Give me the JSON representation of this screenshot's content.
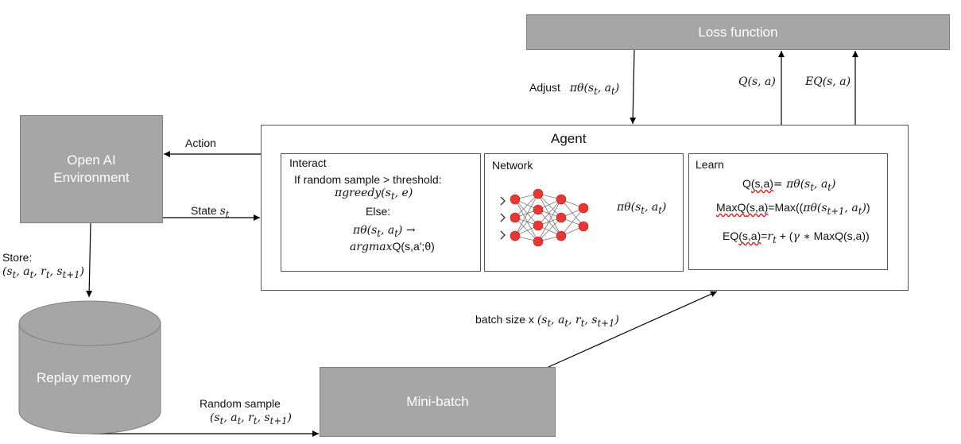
{
  "loss_function": {
    "label": "Loss function"
  },
  "adjust": {
    "label": "Adjust",
    "formula": "πθ(s_t, a_t)"
  },
  "q_label": {
    "formula": "Q(s, a)"
  },
  "eq_label": {
    "formula": "EQ(s, a)"
  },
  "environment": {
    "line1": "Open AI",
    "line2": "Environment"
  },
  "action_label": "Action",
  "state_label": {
    "text": "State",
    "formula": "s_t"
  },
  "agent": {
    "title": "Agent",
    "interact": {
      "title": "Interact",
      "line1": "If random sample > threshold:",
      "line2": "πgreedy(s_t, e)",
      "line3": "Else:",
      "line4": "πθ(s_t, a_t) →",
      "line5_a": "argmax",
      "line5_b": "Q(s,a';θ)"
    },
    "network": {
      "title": "Network",
      "formula": "πθ(s_t, a_t)"
    },
    "learn": {
      "title": "Learn",
      "line1_a": "Q",
      "line1_b": "(s,a)",
      "line1_c": "= πθ(s_t, a_t)",
      "line2_a": "MaxQ",
      "line2_b": "(s,a)",
      "line2_c": "=Max((πθ(s_{t+1}, a_t))",
      "line3_a": "EQ",
      "line3_b": "(s,a)",
      "line3_c": "=r_t + (γ ∗ MaxQ(s,a))"
    }
  },
  "store": {
    "label": "Store:",
    "formula": "(s_t, a_t, r_t, s_{t+1})"
  },
  "replay_memory": {
    "label": "Replay memory"
  },
  "random_sample": {
    "label": "Random sample",
    "formula": "(s_t, a_t, r_t, s_{t+1})"
  },
  "mini_batch": {
    "label": "Mini-batch"
  },
  "batch_size": {
    "label": "batch size x",
    "formula": "(s_t, a_t, r_t, s_{t+1})"
  },
  "colors": {
    "box_fill": "#a6a6a6",
    "node": "#e53935",
    "line": "#000000"
  }
}
